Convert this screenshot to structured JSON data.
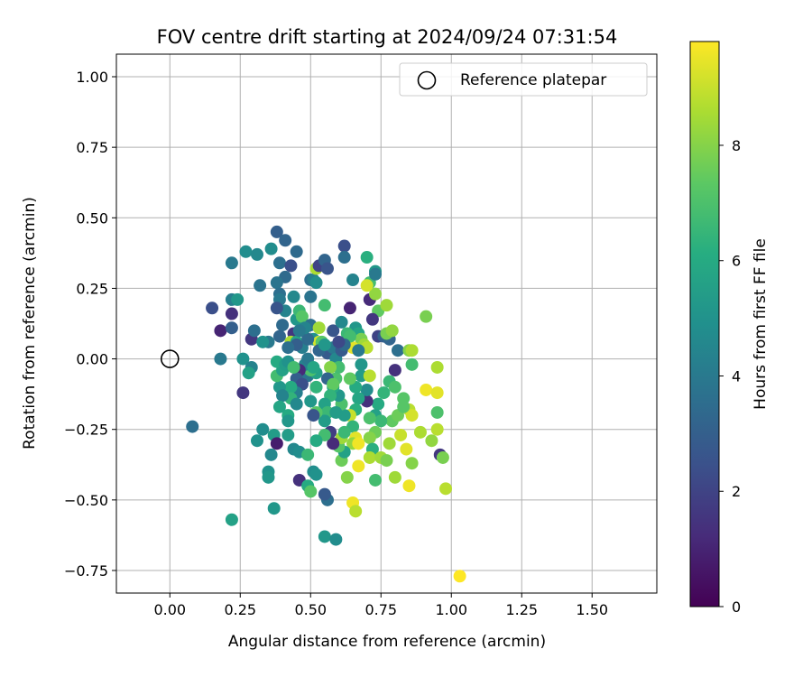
{
  "chart_data": {
    "type": "scatter",
    "title": "FOV centre drift starting at 2024/09/24 07:31:54",
    "xlabel": "Angular distance from reference (arcmin)",
    "ylabel": "Rotation from reference (arcmin)",
    "xlim": [
      -0.19,
      1.73
    ],
    "ylim": [
      -0.83,
      1.08
    ],
    "xticks": [
      "0.00",
      "0.25",
      "0.50",
      "0.75",
      "1.00",
      "1.25",
      "1.50"
    ],
    "yticks": [
      "1.00",
      "0.75",
      "0.50",
      "0.25",
      "0.00",
      "−0.25",
      "−0.50",
      "−0.75"
    ],
    "grid": true,
    "legend": {
      "placement": "top-right",
      "entries": [
        "Reference platepar"
      ]
    },
    "colorbar": {
      "label": "Hours from first FF file",
      "range": [
        0,
        9.8
      ],
      "ticks": [
        "0",
        "2",
        "4",
        "6",
        "8"
      ],
      "colormap": "viridis"
    },
    "reference_point": {
      "x": 0.0,
      "y": 0.0
    },
    "points": [
      [
        0.38,
        0.45,
        3.0
      ],
      [
        0.41,
        0.42,
        3.2
      ],
      [
        0.45,
        0.38,
        3.4
      ],
      [
        0.36,
        0.39,
        4.8
      ],
      [
        0.27,
        0.38,
        4.8
      ],
      [
        0.31,
        0.37,
        4.6
      ],
      [
        0.22,
        0.34,
        4.0
      ],
      [
        0.39,
        0.34,
        3.6
      ],
      [
        0.43,
        0.33,
        2.4
      ],
      [
        0.41,
        0.29,
        3.4
      ],
      [
        0.38,
        0.27,
        3.8
      ],
      [
        0.32,
        0.26,
        3.8
      ],
      [
        0.22,
        0.21,
        4.2
      ],
      [
        0.24,
        0.21,
        5.2
      ],
      [
        0.15,
        0.18,
        2.4
      ],
      [
        0.22,
        0.16,
        1.4
      ],
      [
        0.18,
        0.1,
        1.0
      ],
      [
        0.22,
        0.11,
        3.0
      ],
      [
        0.29,
        0.07,
        1.6
      ],
      [
        0.3,
        0.1,
        3.6
      ],
      [
        0.35,
        0.06,
        4.0
      ],
      [
        0.33,
        0.06,
        5.0
      ],
      [
        0.18,
        0.0,
        4.0
      ],
      [
        0.26,
        0.0,
        5.0
      ],
      [
        0.29,
        -0.03,
        4.4
      ],
      [
        0.28,
        -0.05,
        5.6
      ],
      [
        0.26,
        -0.12,
        1.6
      ],
      [
        0.08,
        -0.24,
        3.6
      ],
      [
        0.33,
        -0.25,
        4.8
      ],
      [
        0.31,
        -0.29,
        5.0
      ],
      [
        0.37,
        -0.27,
        5.4
      ],
      [
        0.38,
        -0.3,
        0.8
      ],
      [
        0.36,
        -0.34,
        4.6
      ],
      [
        0.35,
        -0.4,
        5.0
      ],
      [
        0.35,
        -0.42,
        5.2
      ],
      [
        0.37,
        -0.53,
        5.2
      ],
      [
        0.22,
        -0.57,
        5.6
      ],
      [
        0.39,
        0.23,
        3.6
      ],
      [
        0.39,
        0.21,
        4.0
      ],
      [
        0.41,
        0.17,
        4.4
      ],
      [
        0.4,
        0.12,
        3.4
      ],
      [
        0.38,
        0.18,
        2.6
      ],
      [
        0.39,
        0.08,
        3.2
      ],
      [
        0.44,
        0.09,
        1.6
      ],
      [
        0.45,
        0.14,
        5.2
      ],
      [
        0.44,
        0.22,
        4.6
      ],
      [
        0.46,
        0.17,
        6.6
      ],
      [
        0.47,
        0.15,
        7.2
      ],
      [
        0.43,
        0.06,
        8.6
      ],
      [
        0.47,
        0.1,
        3.6
      ],
      [
        0.45,
        0.06,
        5.8
      ],
      [
        0.5,
        0.22,
        3.8
      ],
      [
        0.5,
        0.28,
        3.6
      ],
      [
        0.51,
        0.28,
        4.2
      ],
      [
        0.52,
        0.27,
        4.8
      ],
      [
        0.52,
        0.32,
        8.6
      ],
      [
        0.53,
        0.33,
        2.0
      ],
      [
        0.55,
        0.35,
        3.2
      ],
      [
        0.56,
        0.32,
        2.6
      ],
      [
        0.55,
        0.19,
        6.8
      ],
      [
        0.5,
        0.12,
        3.6
      ],
      [
        0.51,
        0.07,
        5.0
      ],
      [
        0.53,
        0.11,
        8.4
      ],
      [
        0.53,
        0.06,
        9.2
      ],
      [
        0.54,
        0.06,
        7.2
      ],
      [
        0.56,
        0.02,
        2.8
      ],
      [
        0.58,
        0.04,
        4.0
      ],
      [
        0.59,
        0.0,
        4.6
      ],
      [
        0.62,
        0.4,
        2.4
      ],
      [
        0.62,
        0.36,
        3.6
      ],
      [
        0.65,
        0.28,
        4.4
      ],
      [
        0.7,
        0.36,
        6.2
      ],
      [
        0.71,
        0.27,
        6.8
      ],
      [
        0.73,
        0.31,
        5.2
      ],
      [
        0.73,
        0.3,
        4.0
      ],
      [
        0.64,
        0.18,
        1.0
      ],
      [
        0.71,
        0.21,
        1.2
      ],
      [
        0.73,
        0.23,
        8.2
      ],
      [
        0.7,
        0.26,
        9.2
      ],
      [
        0.74,
        0.17,
        7.4
      ],
      [
        0.77,
        0.19,
        8.4
      ],
      [
        0.72,
        0.14,
        1.6
      ],
      [
        0.66,
        0.11,
        5.2
      ],
      [
        0.67,
        0.09,
        5.8
      ],
      [
        0.63,
        0.07,
        6.6
      ],
      [
        0.68,
        0.07,
        7.8
      ],
      [
        0.65,
        0.04,
        9.4
      ],
      [
        0.69,
        0.05,
        8.4
      ],
      [
        0.7,
        0.04,
        8.8
      ],
      [
        0.74,
        0.08,
        2.0
      ],
      [
        0.76,
        0.08,
        3.0
      ],
      [
        0.78,
        0.07,
        3.2
      ],
      [
        0.77,
        0.09,
        7.8
      ],
      [
        0.79,
        0.1,
        8.2
      ],
      [
        0.81,
        0.03,
        3.6
      ],
      [
        0.85,
        0.03,
        8.0
      ],
      [
        0.86,
        0.03,
        8.6
      ],
      [
        0.91,
        0.15,
        7.8
      ],
      [
        0.86,
        -0.02,
        6.8
      ],
      [
        0.8,
        -0.04,
        1.4
      ],
      [
        0.78,
        -0.08,
        6.6
      ],
      [
        0.8,
        -0.1,
        7.0
      ],
      [
        0.83,
        -0.14,
        7.2
      ],
      [
        0.85,
        -0.18,
        8.8
      ],
      [
        0.86,
        -0.2,
        9.2
      ],
      [
        0.91,
        -0.11,
        9.6
      ],
      [
        0.95,
        -0.12,
        9.4
      ],
      [
        0.95,
        -0.03,
        8.6
      ],
      [
        0.95,
        -0.19,
        7.0
      ],
      [
        0.95,
        -0.25,
        8.8
      ],
      [
        0.93,
        -0.29,
        8.2
      ],
      [
        0.96,
        -0.34,
        1.6
      ],
      [
        0.97,
        -0.35,
        7.8
      ],
      [
        0.98,
        -0.46,
        8.8
      ],
      [
        1.03,
        -0.77,
        9.8
      ],
      [
        0.89,
        -0.26,
        8.6
      ],
      [
        0.86,
        -0.37,
        8.0
      ],
      [
        0.85,
        -0.45,
        9.6
      ],
      [
        0.84,
        -0.32,
        9.4
      ],
      [
        0.82,
        -0.27,
        9.0
      ],
      [
        0.78,
        -0.3,
        8.4
      ],
      [
        0.79,
        -0.22,
        7.4
      ],
      [
        0.81,
        -0.2,
        7.6
      ],
      [
        0.83,
        -0.17,
        7.2
      ],
      [
        0.76,
        -0.12,
        6.4
      ],
      [
        0.74,
        -0.16,
        6.0
      ],
      [
        0.73,
        -0.2,
        5.6
      ],
      [
        0.75,
        -0.22,
        6.6
      ],
      [
        0.71,
        -0.21,
        7.0
      ],
      [
        0.73,
        -0.26,
        7.6
      ],
      [
        0.71,
        -0.28,
        8.0
      ],
      [
        0.72,
        -0.32,
        6.2
      ],
      [
        0.71,
        -0.35,
        8.6
      ],
      [
        0.75,
        -0.35,
        8.4
      ],
      [
        0.77,
        -0.36,
        7.8
      ],
      [
        0.73,
        -0.43,
        6.8
      ],
      [
        0.8,
        -0.42,
        8.4
      ],
      [
        0.7,
        -0.15,
        1.4
      ],
      [
        0.7,
        -0.11,
        4.8
      ],
      [
        0.68,
        -0.06,
        5.4
      ],
      [
        0.68,
        -0.02,
        5.2
      ],
      [
        0.71,
        -0.06,
        8.8
      ],
      [
        0.66,
        -0.1,
        6.0
      ],
      [
        0.64,
        -0.07,
        7.4
      ],
      [
        0.67,
        -0.14,
        5.8
      ],
      [
        0.66,
        -0.18,
        6.2
      ],
      [
        0.64,
        -0.2,
        9.0
      ],
      [
        0.65,
        -0.24,
        6.4
      ],
      [
        0.66,
        -0.28,
        9.4
      ],
      [
        0.65,
        -0.3,
        8.2
      ],
      [
        0.67,
        -0.3,
        9.6
      ],
      [
        0.67,
        -0.38,
        9.6
      ],
      [
        0.65,
        -0.51,
        9.6
      ],
      [
        0.66,
        -0.54,
        8.8
      ],
      [
        0.63,
        -0.42,
        8.0
      ],
      [
        0.61,
        -0.36,
        7.6
      ],
      [
        0.62,
        -0.33,
        5.6
      ],
      [
        0.6,
        -0.31,
        7.2
      ],
      [
        0.61,
        -0.28,
        8.4
      ],
      [
        0.62,
        -0.26,
        6.6
      ],
      [
        0.62,
        -0.2,
        5.4
      ],
      [
        0.61,
        -0.16,
        7.0
      ],
      [
        0.6,
        -0.13,
        5.2
      ],
      [
        0.58,
        -0.1,
        6.0
      ],
      [
        0.59,
        -0.07,
        7.0
      ],
      [
        0.6,
        -0.03,
        6.8
      ],
      [
        0.57,
        -0.03,
        8.0
      ],
      [
        0.56,
        -0.07,
        3.2
      ],
      [
        0.58,
        -0.09,
        7.4
      ],
      [
        0.57,
        -0.13,
        6.4
      ],
      [
        0.55,
        -0.16,
        5.6
      ],
      [
        0.56,
        -0.19,
        6.6
      ],
      [
        0.59,
        -0.19,
        5.4
      ],
      [
        0.55,
        -0.22,
        5.4
      ],
      [
        0.57,
        -0.26,
        1.8
      ],
      [
        0.58,
        -0.3,
        1.2
      ],
      [
        0.55,
        -0.27,
        6.8
      ],
      [
        0.52,
        -0.29,
        6.0
      ],
      [
        0.52,
        -0.19,
        7.2
      ],
      [
        0.51,
        -0.2,
        2.6
      ],
      [
        0.5,
        -0.15,
        5.2
      ],
      [
        0.52,
        -0.1,
        6.4
      ],
      [
        0.49,
        -0.06,
        3.8
      ],
      [
        0.52,
        -0.05,
        5.6
      ],
      [
        0.5,
        -0.04,
        7.0
      ],
      [
        0.48,
        -0.02,
        4.4
      ],
      [
        0.46,
        -0.04,
        1.2
      ],
      [
        0.45,
        -0.07,
        3.0
      ],
      [
        0.47,
        -0.09,
        2.4
      ],
      [
        0.45,
        -0.12,
        4.2
      ],
      [
        0.43,
        -0.1,
        6.0
      ],
      [
        0.43,
        -0.14,
        6.4
      ],
      [
        0.45,
        -0.16,
        4.6
      ],
      [
        0.42,
        -0.2,
        6.0
      ],
      [
        0.42,
        -0.22,
        5.2
      ],
      [
        0.42,
        -0.27,
        5.4
      ],
      [
        0.44,
        -0.32,
        4.6
      ],
      [
        0.46,
        -0.33,
        4.8
      ],
      [
        0.49,
        -0.34,
        6.6
      ],
      [
        0.51,
        -0.4,
        4.8
      ],
      [
        0.52,
        -0.41,
        5.0
      ],
      [
        0.46,
        -0.43,
        1.4
      ],
      [
        0.49,
        -0.45,
        6.0
      ],
      [
        0.5,
        -0.47,
        7.2
      ],
      [
        0.56,
        -0.5,
        3.6
      ],
      [
        0.55,
        -0.48,
        2.8
      ],
      [
        0.55,
        -0.63,
        5.2
      ],
      [
        0.59,
        -0.64,
        4.8
      ],
      [
        0.39,
        -0.1,
        5.2
      ],
      [
        0.4,
        -0.13,
        4.4
      ],
      [
        0.39,
        -0.17,
        5.8
      ],
      [
        0.38,
        -0.06,
        6.8
      ],
      [
        0.4,
        -0.04,
        5.6
      ],
      [
        0.38,
        -0.01,
        6.0
      ],
      [
        0.41,
        -0.02,
        5.4
      ],
      [
        0.42,
        -0.01,
        5.0
      ],
      [
        0.44,
        -0.03,
        6.8
      ],
      [
        0.47,
        0.04,
        4.2
      ],
      [
        0.49,
        0.0,
        4.0
      ],
      [
        0.51,
        -0.03,
        5.8
      ],
      [
        0.53,
        0.03,
        3.2
      ],
      [
        0.55,
        0.05,
        5.2
      ],
      [
        0.61,
        0.03,
        2.8
      ],
      [
        0.63,
        0.09,
        6.6
      ],
      [
        0.64,
        0.08,
        6.8
      ],
      [
        0.67,
        0.03,
        4.0
      ],
      [
        0.62,
        0.05,
        3.4
      ],
      [
        0.6,
        0.06,
        2.2
      ],
      [
        0.58,
        0.1,
        2.6
      ],
      [
        0.61,
        0.13,
        4.6
      ],
      [
        0.49,
        0.07,
        3.4
      ],
      [
        0.48,
        0.11,
        4.4
      ],
      [
        0.46,
        0.1,
        4.0
      ],
      [
        0.45,
        0.05,
        3.0
      ],
      [
        0.42,
        0.04,
        3.6
      ]
    ]
  }
}
